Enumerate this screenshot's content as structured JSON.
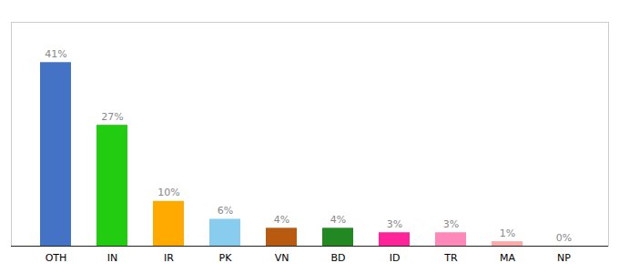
{
  "chart_data": {
    "type": "bar",
    "categories": [
      "OTH",
      "IN",
      "IR",
      "PK",
      "VN",
      "BD",
      "ID",
      "TR",
      "MA",
      "NP"
    ],
    "values": [
      41,
      27,
      10,
      6,
      4,
      4,
      3,
      3,
      1,
      0
    ],
    "value_labels": [
      "41%",
      "27%",
      "10%",
      "6%",
      "4%",
      "4%",
      "3%",
      "3%",
      "1%",
      "0%"
    ],
    "colors": [
      "#4472c4",
      "#22cc11",
      "#ffaa00",
      "#88ccee",
      "#b85a10",
      "#228822",
      "#ff2299",
      "#ff88bb",
      "#ffaaaa",
      "#ffffff"
    ],
    "ylim": [
      0,
      50
    ],
    "data_labels": true,
    "tick_labels": "x",
    "grid": false
  }
}
